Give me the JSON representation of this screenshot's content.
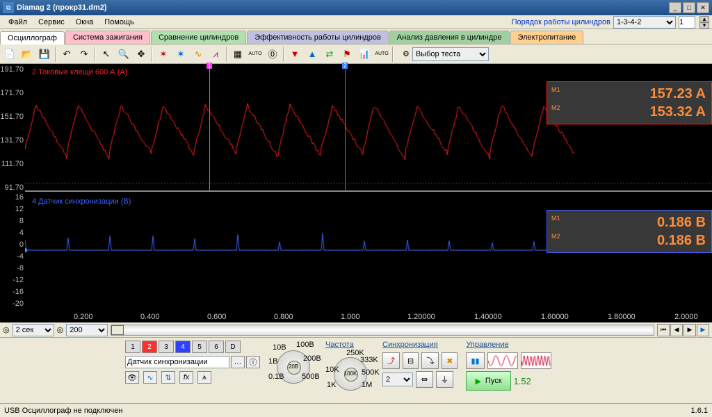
{
  "window": {
    "title": "Diamag 2 (прокр31.dm2)"
  },
  "menu": {
    "file": "Файл",
    "service": "Сервис",
    "windows": "Окна",
    "help": "Помощь",
    "cyl_order_label": "Порядок работы цилиндров",
    "cyl_order_value": "1-3-4-2",
    "cyl_count": "1"
  },
  "tabs": {
    "osc": "Осциллограф",
    "ign": "Система зажигания",
    "cmp": "Сравнение цилиндров",
    "eff": "Эффективность работы цилиндров",
    "press": "Анализ давления в цилиндре",
    "power": "Электропитание"
  },
  "toolbar": {
    "test_select": "Выбор теста"
  },
  "scope": {
    "trace1": {
      "label": "2 Токовые клещи 600 А (A)",
      "color": "#ff2020",
      "yticks": [
        "191.70",
        "171.70",
        "151.70",
        "131.70",
        "111.70",
        "91.70"
      ],
      "m1": "157.23 A",
      "m2": "153.32 A",
      "box_border": "#ff2020"
    },
    "trace2": {
      "label": "4 Датчик синхронизации (В)",
      "color": "#4060ff",
      "yticks": [
        "16",
        "12",
        "8",
        "4",
        "0",
        "-4",
        "-8",
        "-12",
        "-16",
        "-20"
      ],
      "m1": "0.186 B",
      "m2": "0.186 B",
      "box_border": "#4060ff"
    },
    "xticks": [
      "0.200",
      "0.400",
      "0.600",
      "0.800",
      "1.000",
      "1.20000",
      "1.40000",
      "1.60000",
      "1.80000",
      "2.0000"
    ],
    "cursor1": {
      "x": 265,
      "color": "#ff30ff",
      "label": "1"
    },
    "cursor2": {
      "x": 460,
      "color": "#3080ff",
      "label": "2"
    },
    "meas_label_color": "#ff8c39"
  },
  "bottombar": {
    "time": "2 сек",
    "samples": "200"
  },
  "panel": {
    "channel_input": "Датчик синхронизации",
    "freq_title": "Частота",
    "sync_title": "Синхронизация",
    "ctrl_title": "Управление",
    "volt_center": "20B",
    "freq_center": "100K",
    "sync_sel": "2",
    "run": "Пуск",
    "run_val": "1.52",
    "volt_labels": [
      "0.1B",
      "1B",
      "10B",
      "100B",
      "200B",
      "500B"
    ],
    "freq_labels": [
      "1K",
      "10K",
      "100K",
      "250K",
      "333K",
      "500K",
      "1M"
    ]
  },
  "status": {
    "msg": "USB Осциллограф не подключен",
    "version": "1.6.1"
  },
  "colors": {
    "bg": "#ece9d8",
    "scope_bg": "#000000",
    "grid": "#444444"
  }
}
